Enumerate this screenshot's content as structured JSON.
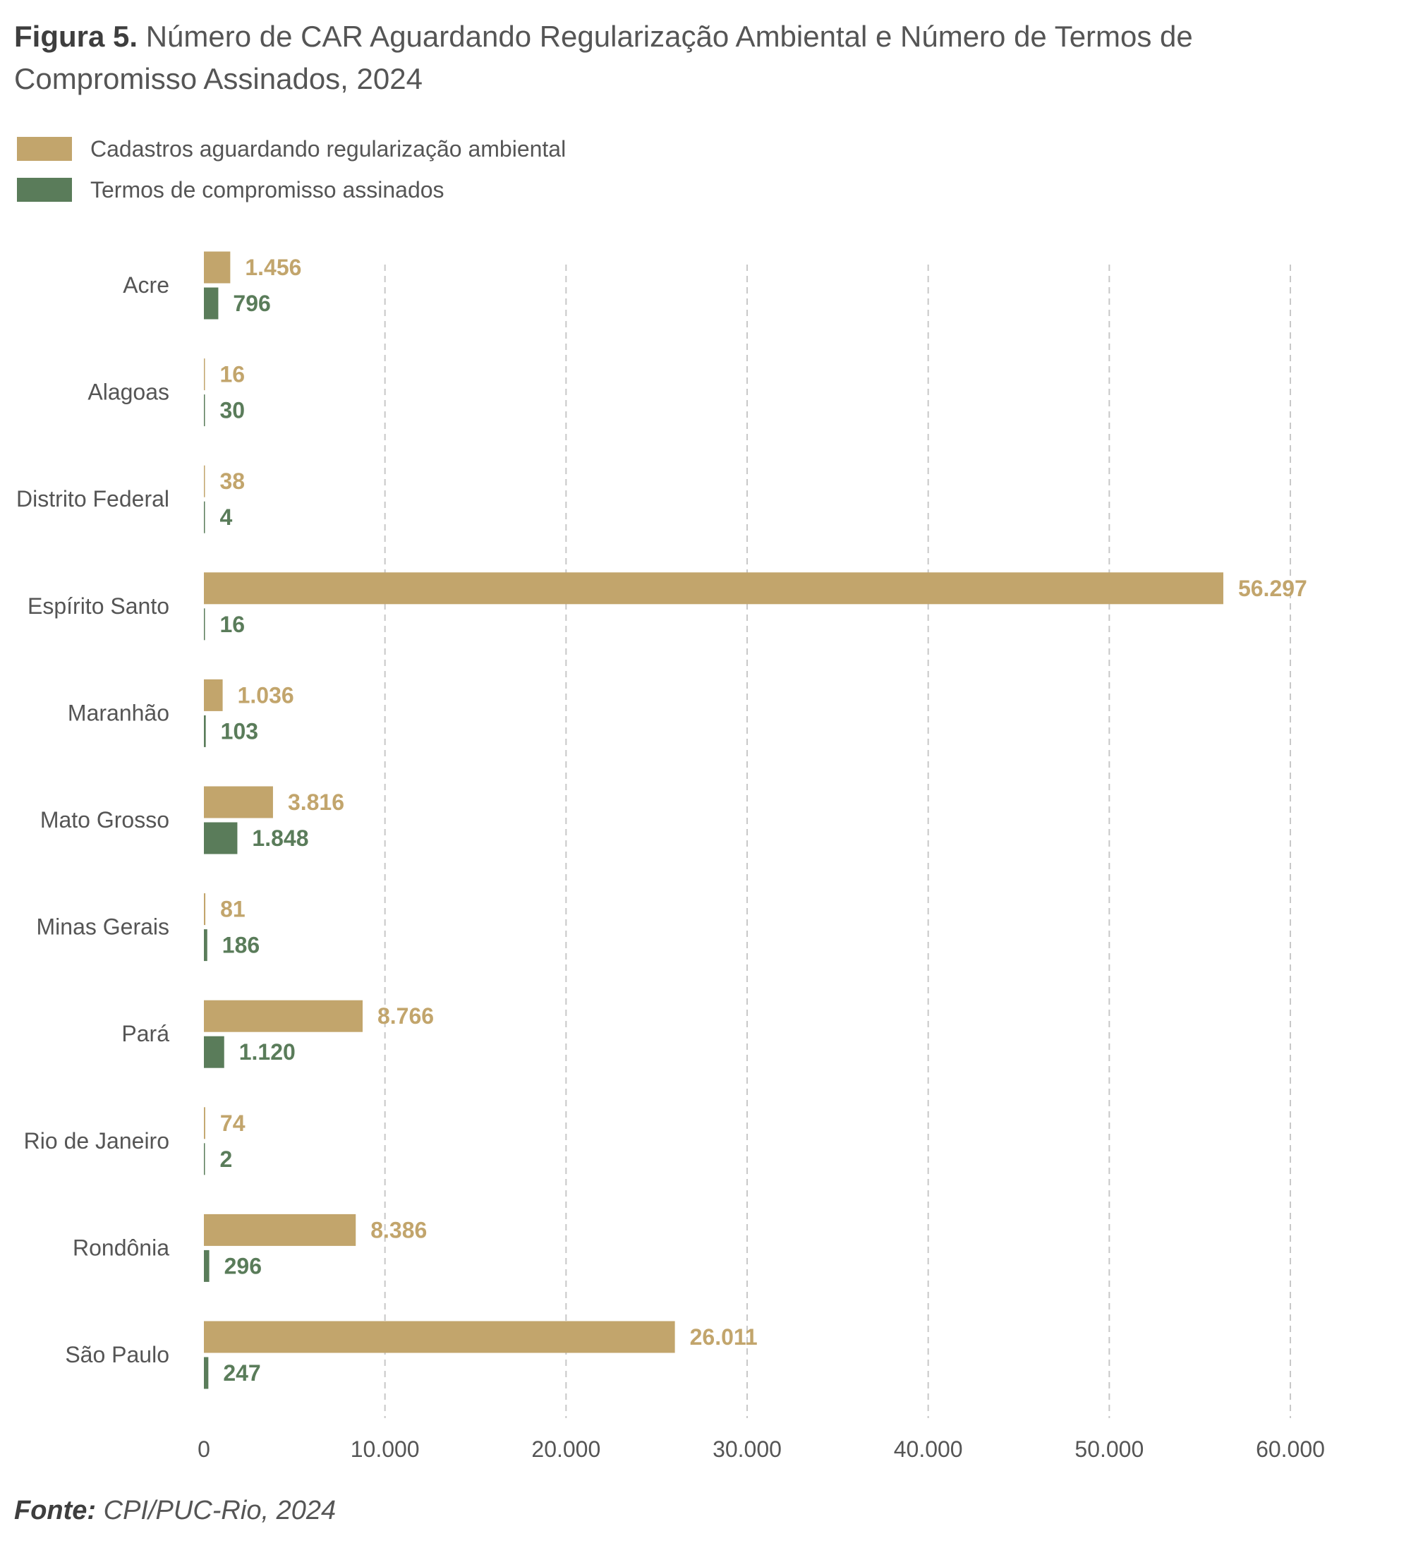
{
  "title": {
    "label": "Figura 5.",
    "text": "Número de CAR Aguardando Regularização Ambiental e Número de Termos de Compromisso Assinados, 2024"
  },
  "source": {
    "label": "Fonte:",
    "text": "CPI/PUC-Rio, 2024"
  },
  "colors": {
    "series1": "#c2a56c",
    "series2": "#5a7c5a",
    "grid": "#c8c8c8"
  },
  "chart_data": {
    "type": "bar",
    "orientation": "horizontal",
    "categories": [
      "Acre",
      "Alagoas",
      "Distrito Federal",
      "Espírito Santo",
      "Maranhão",
      "Mato Grosso",
      "Minas Gerais",
      "Pará",
      "Rio de Janeiro",
      "Rondônia",
      "São Paulo"
    ],
    "series": [
      {
        "name": "Cadastros aguardando regularização ambiental",
        "values": [
          1456,
          16,
          38,
          56297,
          1036,
          3816,
          81,
          8766,
          74,
          8386,
          26011
        ],
        "labels": [
          "1.456",
          "16",
          "38",
          "56.297",
          "1.036",
          "3.816",
          "81",
          "8.766",
          "74",
          "8.386",
          "26.011"
        ]
      },
      {
        "name": "Termos de compromisso assinados",
        "values": [
          796,
          30,
          4,
          16,
          103,
          1848,
          186,
          1120,
          2,
          296,
          247
        ],
        "labels": [
          "796",
          "30",
          "4",
          "16",
          "103",
          "1.848",
          "186",
          "1.120",
          "2",
          "296",
          "247"
        ]
      }
    ],
    "xlim": [
      0,
      60000
    ],
    "xticks": [
      0,
      10000,
      20000,
      30000,
      40000,
      50000,
      60000
    ],
    "xtick_labels": [
      "0",
      "10.000",
      "20.000",
      "30.000",
      "40.000",
      "50.000",
      "60.000"
    ],
    "grid": "vertical dashed",
    "legend": "top-left"
  }
}
